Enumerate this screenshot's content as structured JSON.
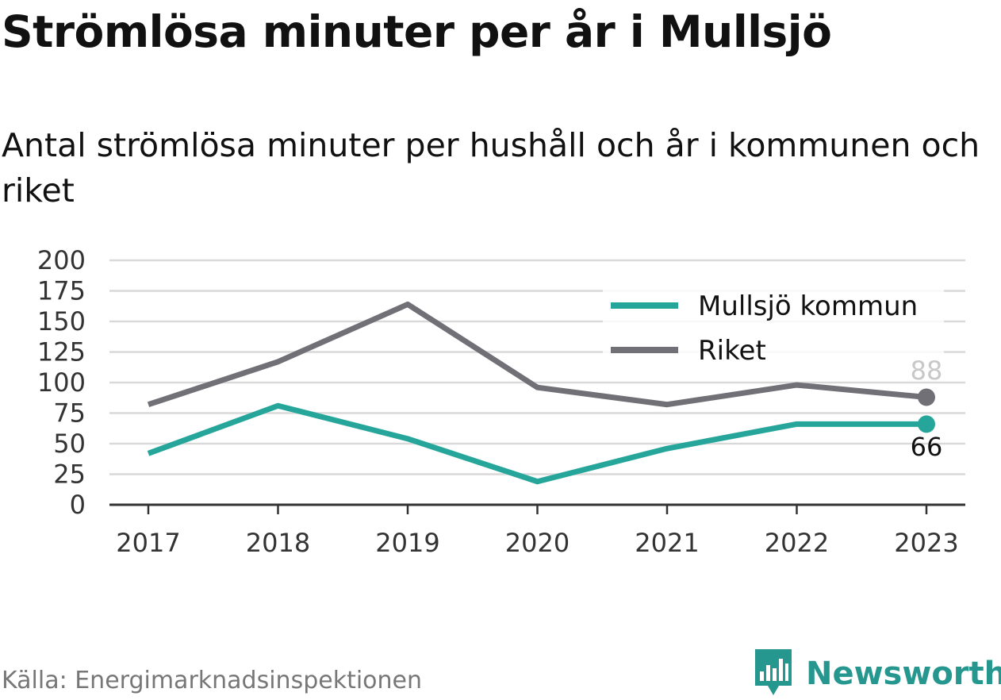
{
  "title": "Strömlösa minuter per år i Mullsjö",
  "subtitle": "Antal strömlösa minuter per hushåll och år i kommunen och riket",
  "source": "Källa: Energimarknadsinspektionen",
  "brand": {
    "name": "Newsworthy",
    "icon": "newsworthy-logo-icon"
  },
  "colors": {
    "mullsjo": "#26a69a",
    "riket": "#717077",
    "grid": "#d9d9d9",
    "axis": "#333333"
  },
  "chart_data": {
    "type": "line",
    "x": [
      "2017",
      "2018",
      "2019",
      "2020",
      "2021",
      "2022",
      "2023"
    ],
    "ylim": [
      0,
      200
    ],
    "yticks": [
      "0",
      "25",
      "50",
      "75",
      "100",
      "125",
      "150",
      "175",
      "200"
    ],
    "grid": true,
    "legend_position": "top-right",
    "series": [
      {
        "name": "Mullsjö kommun",
        "values": [
          42,
          81,
          54,
          19,
          46,
          66,
          66
        ],
        "end_label": "66"
      },
      {
        "name": "Riket",
        "values": [
          82,
          117,
          164,
          96,
          82,
          98,
          88
        ],
        "end_label": "88"
      }
    ]
  }
}
